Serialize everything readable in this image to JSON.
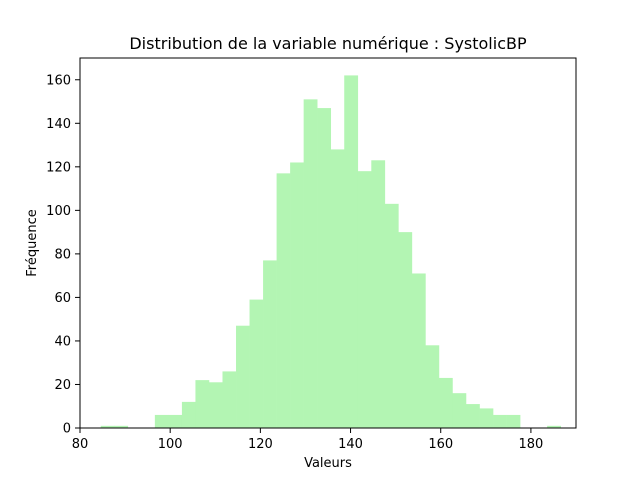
{
  "chart_data": {
    "type": "bar",
    "title": "Distribution de la variable numérique : SystolicBP",
    "xlabel": "Valeurs",
    "ylabel": "Fréquence",
    "xlim": [
      80,
      190
    ],
    "ylim": [
      0,
      170
    ],
    "xticks": [
      80,
      100,
      120,
      140,
      160,
      180
    ],
    "yticks": [
      0,
      20,
      40,
      60,
      80,
      100,
      120,
      140,
      160
    ],
    "bar_color": "#b3f5b3",
    "grid": false,
    "bins": [
      {
        "x0": 84.6,
        "x1": 87.6,
        "count": 1
      },
      {
        "x0": 87.6,
        "x1": 90.6,
        "count": 1
      },
      {
        "x0": 90.6,
        "x1": 93.6,
        "count": 0
      },
      {
        "x0": 93.6,
        "x1": 96.6,
        "count": 0
      },
      {
        "x0": 96.6,
        "x1": 99.6,
        "count": 6
      },
      {
        "x0": 99.6,
        "x1": 102.6,
        "count": 6
      },
      {
        "x0": 102.6,
        "x1": 105.6,
        "count": 12
      },
      {
        "x0": 105.6,
        "x1": 108.6,
        "count": 22
      },
      {
        "x0": 108.6,
        "x1": 111.6,
        "count": 21
      },
      {
        "x0": 111.6,
        "x1": 114.6,
        "count": 26
      },
      {
        "x0": 114.6,
        "x1": 117.6,
        "count": 47
      },
      {
        "x0": 117.6,
        "x1": 120.6,
        "count": 59
      },
      {
        "x0": 120.6,
        "x1": 123.6,
        "count": 77
      },
      {
        "x0": 123.6,
        "x1": 126.6,
        "count": 117
      },
      {
        "x0": 126.6,
        "x1": 129.6,
        "count": 122
      },
      {
        "x0": 129.6,
        "x1": 132.6,
        "count": 151
      },
      {
        "x0": 132.6,
        "x1": 135.6,
        "count": 147
      },
      {
        "x0": 135.6,
        "x1": 138.6,
        "count": 128
      },
      {
        "x0": 138.6,
        "x1": 141.6,
        "count": 162
      },
      {
        "x0": 141.6,
        "x1": 144.6,
        "count": 118
      },
      {
        "x0": 144.6,
        "x1": 147.6,
        "count": 123
      },
      {
        "x0": 147.6,
        "x1": 150.6,
        "count": 103
      },
      {
        "x0": 150.6,
        "x1": 153.6,
        "count": 90
      },
      {
        "x0": 153.6,
        "x1": 156.6,
        "count": 71
      },
      {
        "x0": 156.6,
        "x1": 159.6,
        "count": 38
      },
      {
        "x0": 159.6,
        "x1": 162.6,
        "count": 23
      },
      {
        "x0": 162.6,
        "x1": 165.6,
        "count": 16
      },
      {
        "x0": 165.6,
        "x1": 168.6,
        "count": 11
      },
      {
        "x0": 168.6,
        "x1": 171.6,
        "count": 9
      },
      {
        "x0": 171.6,
        "x1": 174.6,
        "count": 6
      },
      {
        "x0": 174.6,
        "x1": 177.6,
        "count": 6
      },
      {
        "x0": 177.6,
        "x1": 180.6,
        "count": 0
      },
      {
        "x0": 180.6,
        "x1": 183.6,
        "count": 0
      },
      {
        "x0": 183.6,
        "x1": 186.6,
        "count": 1
      }
    ]
  }
}
